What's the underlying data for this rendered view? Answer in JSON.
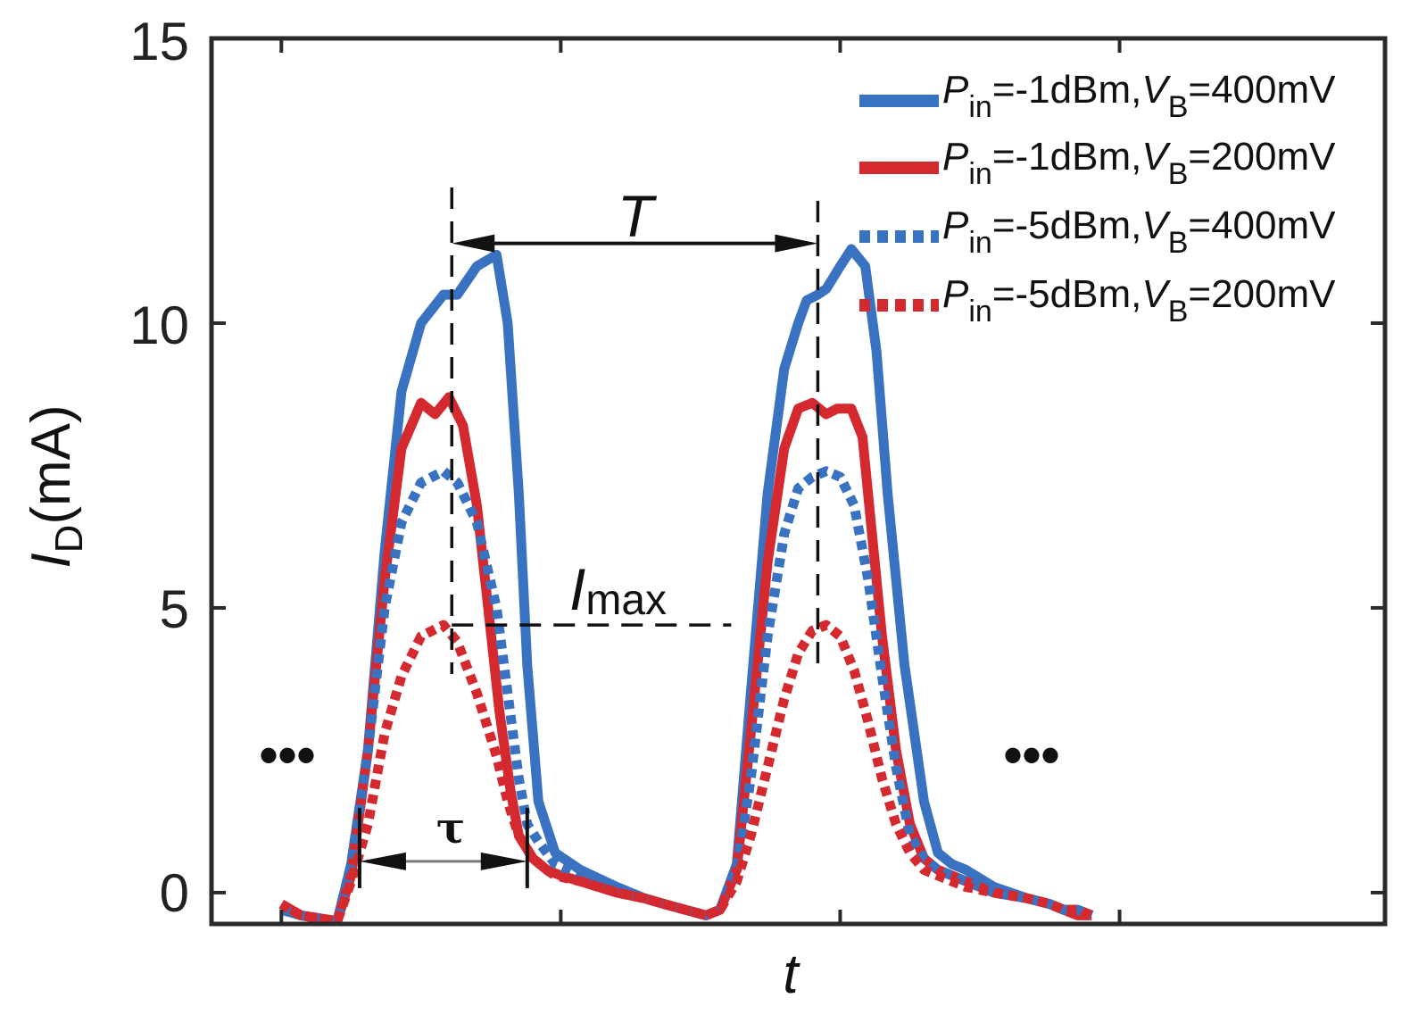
{
  "chart_data": {
    "type": "line",
    "title": "",
    "xlabel": "t",
    "ylabel_main": "I",
    "ylabel_sub": "D",
    "ylabel_unit": "(mA)",
    "ylim": [
      -0.55,
      15
    ],
    "xlim": [
      0,
      42
    ],
    "yticks": [
      0,
      5,
      10,
      15
    ],
    "ytick_labels": [
      "0",
      "5",
      "10",
      "15"
    ],
    "xticks": [
      2.5,
      12.5,
      22.5,
      32.5
    ],
    "grid": false,
    "legend_position": "top-right",
    "series": [
      {
        "name": "Pin=-1dBm,VB=400mV",
        "legend": {
          "p": "P",
          "p_sub": "in",
          "mid": "=-1dBm,",
          "v": "V",
          "v_sub": "B",
          "tail": "=400mV"
        },
        "color": "#3a72c2",
        "dash": "solid",
        "x": [
          2.5,
          3.2,
          4.5,
          5.0,
          5.6,
          6.2,
          6.8,
          7.5,
          8.3,
          8.8,
          9.5,
          10.2,
          10.6,
          11.0,
          11.3,
          11.7,
          12.3,
          13.2,
          14.5,
          15.5,
          16.2,
          17.7,
          18.2,
          18.8,
          19.3,
          19.9,
          20.5,
          21.0,
          21.3,
          21.7,
          22.0,
          22.5,
          22.9,
          23.4,
          23.8,
          24.2,
          24.8,
          25.5,
          26.0,
          26.5,
          27.0,
          28.0,
          29.2,
          30.0,
          30.5,
          31.0,
          31.5
        ],
        "values": [
          -0.3,
          -0.4,
          -0.5,
          0.5,
          2.5,
          6.0,
          8.8,
          10.0,
          10.5,
          10.5,
          11.0,
          11.2,
          10.0,
          7.0,
          4.0,
          1.6,
          0.7,
          0.4,
          0.1,
          -0.1,
          -0.2,
          -0.4,
          -0.3,
          0.5,
          3.5,
          7.0,
          9.2,
          10.0,
          10.4,
          10.5,
          10.6,
          11.0,
          11.3,
          11.0,
          9.5,
          7.0,
          4.0,
          1.6,
          0.7,
          0.5,
          0.4,
          0.1,
          -0.1,
          -0.2,
          -0.3,
          -0.3,
          -0.4
        ]
      },
      {
        "name": "Pin=-1dBm,VB=200mV",
        "legend": {
          "p": "P",
          "p_sub": "in",
          "mid": "=-1dBm,",
          "v": "V",
          "v_sub": "B",
          "tail": "=200mV"
        },
        "color": "#d42a2f",
        "dash": "solid",
        "x": [
          2.5,
          3.2,
          4.5,
          5.0,
          5.6,
          6.2,
          6.8,
          7.5,
          8.0,
          8.5,
          9.0,
          9.5,
          9.9,
          10.3,
          10.7,
          11.0,
          11.5,
          12.0,
          12.5,
          13.2,
          14.5,
          15.5,
          16.2,
          17.7,
          18.2,
          18.8,
          19.3,
          19.9,
          20.5,
          21.0,
          21.5,
          22.0,
          22.4,
          22.9,
          23.3,
          23.6,
          24.0,
          24.5,
          25.0,
          25.5,
          26.0,
          27.0,
          28.0,
          29.2,
          30.0,
          30.5,
          31.0,
          31.5
        ],
        "values": [
          -0.2,
          -0.4,
          -0.5,
          0.3,
          2.5,
          5.5,
          7.8,
          8.6,
          8.4,
          8.7,
          8.2,
          6.8,
          5.0,
          3.2,
          1.8,
          1.0,
          0.6,
          0.4,
          0.3,
          0.2,
          0.0,
          -0.1,
          -0.2,
          -0.4,
          -0.3,
          0.4,
          2.8,
          5.8,
          7.8,
          8.5,
          8.6,
          8.4,
          8.5,
          8.5,
          8.0,
          6.5,
          4.5,
          2.5,
          1.2,
          0.6,
          0.4,
          0.2,
          0.0,
          -0.1,
          -0.2,
          -0.3,
          -0.4,
          -0.4
        ]
      },
      {
        "name": "Pin=-5dBm,VB=400mV",
        "legend": {
          "p": "P",
          "p_sub": "in",
          "mid": "=-5dBm,",
          "v": "V",
          "v_sub": "B",
          "tail": "=400mV"
        },
        "color": "#3a72c2",
        "dash": "dotted",
        "x": [
          2.5,
          3.2,
          4.5,
          5.0,
          5.6,
          6.2,
          6.8,
          7.5,
          8.3,
          8.8,
          9.5,
          10.2,
          10.6,
          11.0,
          11.3,
          11.7,
          12.3,
          13.2,
          14.5,
          15.5,
          16.2,
          17.7,
          18.2,
          18.8,
          19.3,
          19.9,
          20.5,
          21.0,
          21.5,
          22.0,
          22.5,
          23.0,
          23.5,
          24.0,
          24.5,
          25.0,
          25.5,
          26.0,
          27.0,
          28.0,
          29.2,
          30.0,
          30.5,
          31.0,
          31.5
        ],
        "values": [
          -0.3,
          -0.4,
          -0.5,
          0.5,
          2.5,
          5.0,
          6.5,
          7.2,
          7.4,
          7.2,
          6.5,
          5.0,
          3.5,
          2.0,
          1.2,
          0.9,
          0.5,
          0.3,
          0.1,
          -0.1,
          -0.2,
          -0.4,
          -0.3,
          0.4,
          2.0,
          4.5,
          6.3,
          7.1,
          7.3,
          7.4,
          7.3,
          6.8,
          5.5,
          3.8,
          2.2,
          1.0,
          0.6,
          0.4,
          0.2,
          0.0,
          -0.1,
          -0.2,
          -0.3,
          -0.3,
          -0.4
        ]
      },
      {
        "name": "Pin=-5dBm,VB=200mV",
        "legend": {
          "p": "P",
          "p_sub": "in",
          "mid": "=-5dBm,",
          "v": "V",
          "v_sub": "B",
          "tail": "=200mV"
        },
        "color": "#d42a2f",
        "dash": "dotted",
        "x": [
          2.5,
          3.2,
          4.5,
          5.0,
          5.6,
          6.2,
          6.8,
          7.5,
          8.3,
          8.8,
          9.5,
          10.2,
          10.6,
          11.0,
          11.5,
          12.0,
          12.3,
          13.2,
          14.5,
          15.5,
          16.2,
          17.7,
          18.2,
          18.8,
          19.3,
          19.9,
          20.5,
          21.0,
          21.5,
          22.0,
          22.5,
          23.0,
          23.5,
          24.0,
          24.5,
          25.0,
          25.5,
          26.0,
          27.0,
          28.0,
          29.2,
          30.0,
          30.5,
          31.0,
          31.5
        ],
        "values": [
          -0.2,
          -0.4,
          -0.5,
          0.2,
          1.2,
          2.8,
          3.8,
          4.5,
          4.7,
          4.4,
          3.5,
          2.4,
          1.6,
          1.0,
          0.6,
          0.4,
          0.3,
          0.2,
          0.0,
          -0.1,
          -0.2,
          -0.4,
          -0.3,
          0.2,
          1.0,
          2.2,
          3.4,
          4.2,
          4.6,
          4.7,
          4.5,
          3.9,
          3.0,
          2.0,
          1.2,
          0.7,
          0.4,
          0.3,
          0.1,
          0.0,
          -0.1,
          -0.2,
          -0.3,
          -0.3,
          -0.4
        ]
      }
    ],
    "annotations": {
      "T_label": "T",
      "Imax_main": "I",
      "Imax_sub": "max",
      "tau_label": "τ",
      "ellipsis_left": "•••",
      "ellipsis_right": "•••",
      "peak_x1": 8.6,
      "peak_x2": 21.7,
      "T_arrow_y": 11.4,
      "Imax_y": 4.7,
      "Imax_line_end_x": 18.6,
      "tau_x1": 5.3,
      "tau_x2": 11.3,
      "tau_y": 0.55
    }
  }
}
